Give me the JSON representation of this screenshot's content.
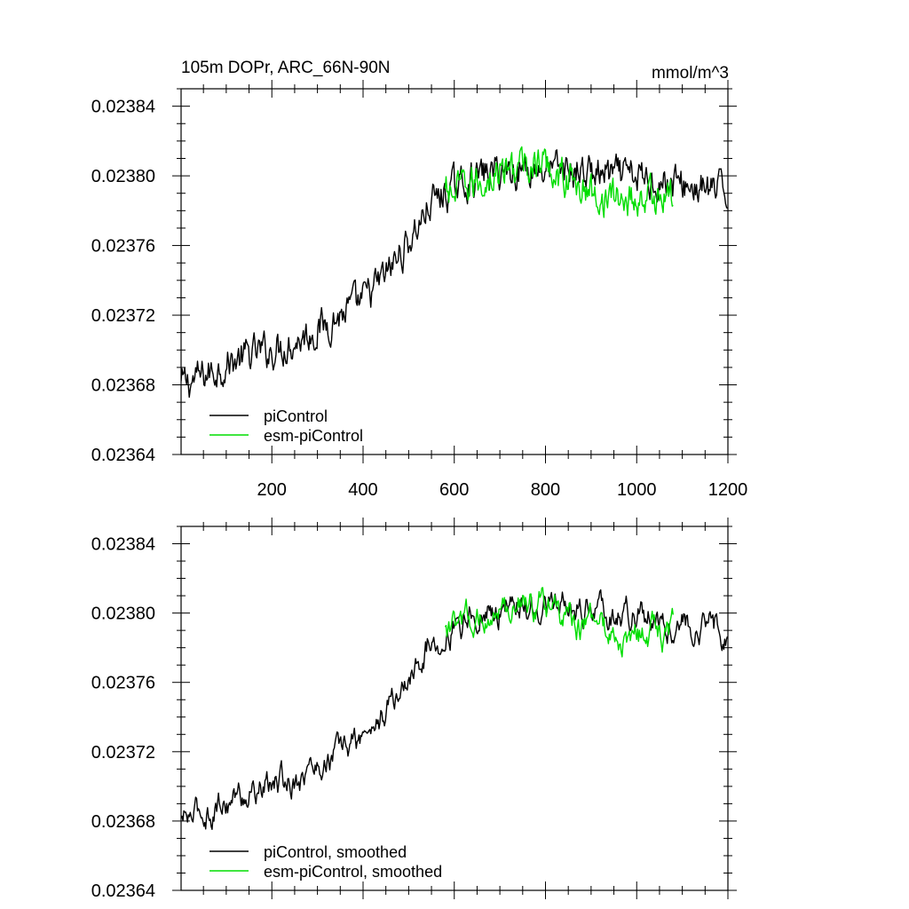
{
  "chart_data": [
    {
      "type": "line",
      "title": "105m DOPr, ARC_66N-90N",
      "units": "mmol/m^3",
      "xlabel": "",
      "ylabel": "",
      "xlim": [
        1,
        1200
      ],
      "ylim": [
        0.02364,
        0.02385
      ],
      "xticks": [
        200,
        400,
        600,
        800,
        1000,
        1200
      ],
      "xtick_labels": [
        "200",
        "400",
        "600",
        "800",
        "1000",
        "1200"
      ],
      "yticks": [
        0.02364,
        0.02368,
        0.02372,
        0.02376,
        0.0238,
        0.02384
      ],
      "ytick_labels": [
        "0.02364",
        "0.02368",
        "0.02372",
        "0.02376",
        "0.02380",
        "0.02384"
      ],
      "legend": "bottom-left",
      "series": [
        {
          "name": "piControl",
          "color": "#000000",
          "x": [
            1,
            50,
            100,
            150,
            200,
            250,
            300,
            350,
            400,
            450,
            500,
            550,
            600,
            650,
            700,
            750,
            800,
            850,
            900,
            950,
            1000,
            1050,
            1100,
            1150,
            1200
          ],
          "values": [
            0.02368,
            0.023685,
            0.023692,
            0.023697,
            0.0237,
            0.023705,
            0.023712,
            0.02372,
            0.023728,
            0.023743,
            0.023762,
            0.023785,
            0.023793,
            0.0238,
            0.023803,
            0.023804,
            0.023804,
            0.023803,
            0.023802,
            0.0238,
            0.023799,
            0.023797,
            0.023795,
            0.023792,
            0.02379
          ]
        },
        {
          "name": "esm-piControl",
          "color": "#00dd00",
          "x": [
            580,
            600,
            650,
            700,
            750,
            800,
            850,
            900,
            950,
            1000,
            1050,
            1080
          ],
          "values": [
            0.02379,
            0.02379,
            0.023796,
            0.023802,
            0.023806,
            0.023806,
            0.023798,
            0.02379,
            0.023787,
            0.023787,
            0.023788,
            0.023788
          ]
        }
      ]
    },
    {
      "type": "line",
      "title": "",
      "xlabel": "",
      "ylabel": "",
      "xlim": [
        1,
        1200
      ],
      "ylim": [
        0.02364,
        0.02385
      ],
      "xticks": [
        200,
        400,
        600,
        800,
        1000,
        1200
      ],
      "yticks": [
        0.02364,
        0.02368,
        0.02372,
        0.02376,
        0.0238,
        0.02384
      ],
      "ytick_labels": [
        "0.02364",
        "0.02368",
        "0.02372",
        "0.02376",
        "0.02380",
        "0.02384"
      ],
      "legend": "bottom-left",
      "series": [
        {
          "name": "piControl, smoothed",
          "color": "#000000",
          "x": [
            1,
            50,
            100,
            150,
            200,
            250,
            300,
            350,
            400,
            450,
            500,
            550,
            600,
            650,
            700,
            750,
            800,
            850,
            900,
            950,
            1000,
            1050,
            1100,
            1150,
            1200
          ],
          "values": [
            0.02368,
            0.023685,
            0.023692,
            0.023697,
            0.0237,
            0.023705,
            0.023712,
            0.02372,
            0.023728,
            0.023743,
            0.023762,
            0.023785,
            0.023793,
            0.0238,
            0.023803,
            0.023804,
            0.023804,
            0.023803,
            0.023802,
            0.0238,
            0.023799,
            0.023797,
            0.023795,
            0.023792,
            0.02379
          ]
        },
        {
          "name": "esm-piControl, smoothed",
          "color": "#00dd00",
          "x": [
            580,
            600,
            650,
            700,
            750,
            800,
            850,
            900,
            950,
            1000,
            1050,
            1080
          ],
          "values": [
            0.02379,
            0.02379,
            0.023796,
            0.023802,
            0.023806,
            0.023806,
            0.023798,
            0.02379,
            0.023787,
            0.023787,
            0.023788,
            0.023788
          ]
        }
      ]
    }
  ]
}
